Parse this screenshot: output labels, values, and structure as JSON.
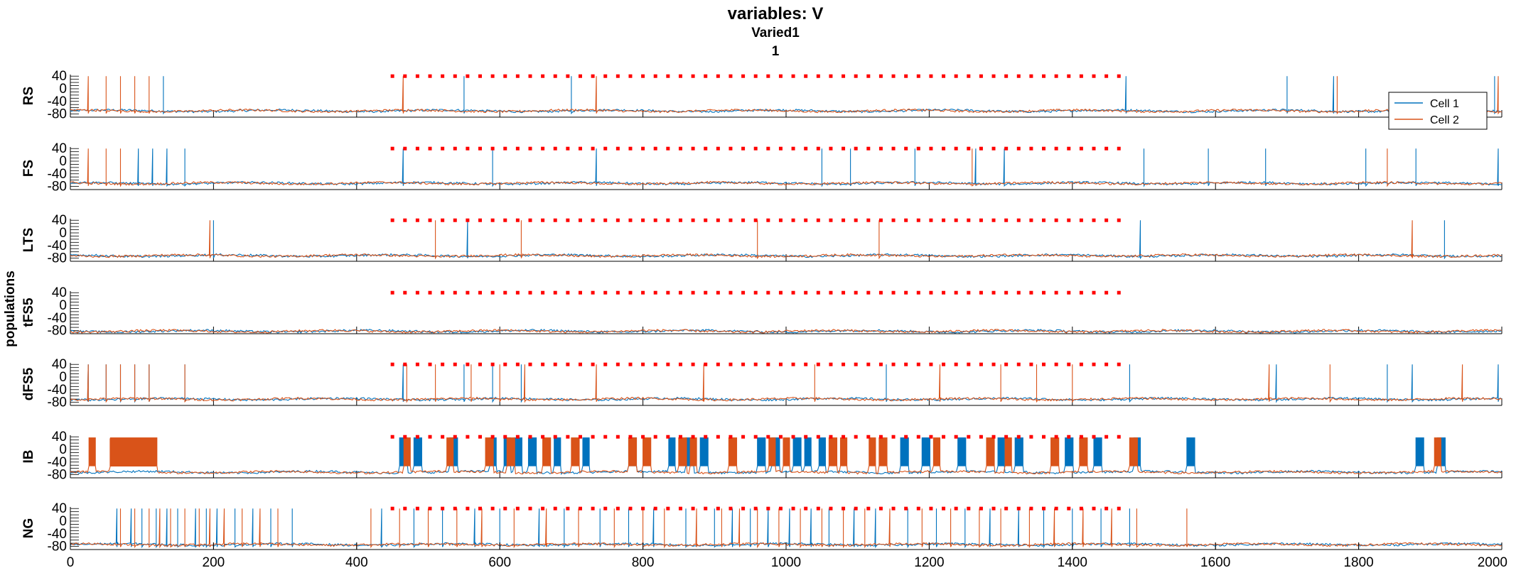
{
  "chart_data": {
    "type": "line",
    "title": "variables: V",
    "subtitle": "Varied1",
    "subtitle2": "1",
    "ylabel": "populations",
    "xlim": [
      0,
      2000
    ],
    "x_ticks": [
      "0",
      "200",
      "400",
      "600",
      "800",
      "1000",
      "1200",
      "1400",
      "1600",
      "1800",
      "2000"
    ],
    "x_tick_values": [
      0,
      200,
      400,
      600,
      800,
      1000,
      1200,
      1400,
      1600,
      1800,
      2000
    ],
    "ylim": [
      -90,
      45
    ],
    "y_ticks": [
      "40",
      "0",
      "-40",
      "-80"
    ],
    "y_tick_values": [
      40,
      0,
      -40,
      -80
    ],
    "legend": {
      "placement": "top-right",
      "entries": [
        "Cell 1",
        "Cell 2"
      ]
    },
    "colors": {
      "cell1": "#0072BD",
      "cell2": "#D95319",
      "marker": "#FF0000"
    },
    "marker_dots": {
      "x_start": 450,
      "x_end": 1480,
      "y": 40
    },
    "panels": [
      {
        "name": "RS",
        "baseline": -70,
        "series": [
          {
            "name": "Cell 1",
            "spikes": [
              130,
              550,
              700,
              1475,
              1700,
              1765,
              1990
            ]
          },
          {
            "name": "Cell 2",
            "spikes": [
              25,
              50,
              70,
              90,
              110,
              465,
              735,
              1770,
              1995
            ]
          }
        ]
      },
      {
        "name": "FS",
        "baseline": -70,
        "series": [
          {
            "name": "Cell 1",
            "spikes": [
              95,
              115,
              135,
              160,
              465,
              590,
              735,
              1050,
              1090,
              1180,
              1265,
              1305,
              1500,
              1590,
              1670,
              1810,
              1880,
              1995
            ]
          },
          {
            "name": "Cell 2",
            "spikes": [
              25,
              50,
              70,
              1260,
              1840
            ]
          }
        ]
      },
      {
        "name": "LTS",
        "baseline": -72,
        "series": [
          {
            "name": "Cell 1",
            "spikes": [
              200,
              555,
              1495,
              1920
            ]
          },
          {
            "name": "Cell 2",
            "spikes": [
              195,
              510,
              630,
              960,
              1130,
              1875
            ]
          }
        ]
      },
      {
        "name": "tFS5",
        "baseline": -82,
        "series": [
          {
            "name": "Cell 1",
            "spikes": []
          },
          {
            "name": "Cell 2",
            "spikes": []
          }
        ]
      },
      {
        "name": "dFS5",
        "baseline": -70,
        "series": [
          {
            "name": "Cell 1",
            "spikes": [
              25,
              50,
              70,
              90,
              110,
              160,
              465,
              550,
              590,
              630,
              1140,
              1480,
              1685,
              1840,
              1875,
              1995
            ]
          },
          {
            "name": "Cell 2",
            "spikes": [
              25,
              50,
              70,
              90,
              110,
              160,
              470,
              510,
              560,
              600,
              635,
              735,
              885,
              1040,
              1215,
              1300,
              1350,
              1400,
              1675,
              1760,
              1945
            ]
          }
        ]
      },
      {
        "name": "IB",
        "baseline": -72,
        "burst_block": {
          "start": 55,
          "end": 120
        },
        "series": [
          {
            "name": "Cell 1",
            "bursts": [
              460,
              480,
              530,
              585,
              605,
              620,
              640,
              675,
              715,
              780,
              835,
              860,
              880,
              960,
              980,
              1010,
              1025,
              1045,
              1160,
              1190,
              1240,
              1295,
              1320,
              1390,
              1430,
              1485,
              1560,
              1880,
              1910
            ]
          },
          {
            "name": "Cell 2",
            "bursts": [
              25,
              465,
              525,
              580,
              610,
              660,
              700,
              780,
              800,
              850,
              865,
              920,
              975,
              995,
              1060,
              1075,
              1115,
              1130,
              1205,
              1280,
              1305,
              1370,
              1410,
              1480,
              1905
            ]
          }
        ]
      },
      {
        "name": "NG",
        "baseline": -74,
        "series": [
          {
            "name": "Cell 1",
            "spikes": [
              65,
              85,
              100,
              120,
              135,
              150,
              175,
              190,
              205,
              230,
              255,
              280,
              310,
              435,
              480,
              520,
              565,
              600,
              655,
              690,
              740,
              780,
              815,
              860,
              900,
              925,
              950,
              975,
              1005,
              1035,
              1060,
              1095,
              1125,
              1170,
              1210,
              1250,
              1285,
              1325,
              1360,
              1400,
              1440,
              1480
            ]
          },
          {
            "name": "Cell 2",
            "spikes": [
              70,
              90,
              110,
              125,
              140,
              160,
              180,
              195,
              215,
              240,
              265,
              290,
              420,
              460,
              500,
              540,
              575,
              620,
              665,
              710,
              760,
              800,
              830,
              875,
              910,
              935,
              960,
              990,
              1020,
              1050,
              1080,
              1110,
              1145,
              1190,
              1230,
              1270,
              1300,
              1340,
              1375,
              1415,
              1455,
              1490,
              1560
            ]
          }
        ]
      }
    ]
  }
}
